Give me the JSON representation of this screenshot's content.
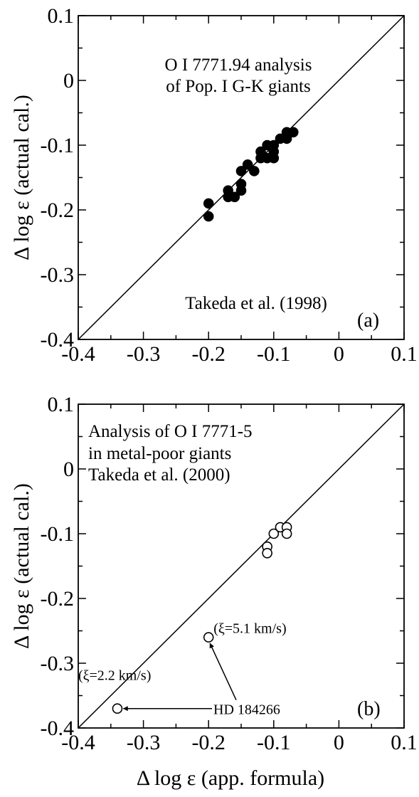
{
  "chart_data": [
    {
      "type": "scatter",
      "panel_label": "(a)",
      "annotations": [
        "O I 7771.94 analysis",
        "of Pop. I G-K giants",
        "Takeda et al. (1998)"
      ],
      "xlim": [
        -0.4,
        0.1
      ],
      "ylim": [
        -0.4,
        0.1
      ],
      "xticks": [
        "-0.4",
        "-0.3",
        "-0.2",
        "-0.1",
        "0",
        "0.1"
      ],
      "yticks": [
        "0.1",
        "0",
        "-0.1",
        "-0.2",
        "-0.3",
        "-0.4"
      ],
      "ylabel": "Δ log ε (actual cal.)",
      "marker": "filled",
      "reference_line": "y = x",
      "points": [
        {
          "x": -0.2,
          "y": -0.19
        },
        {
          "x": -0.2,
          "y": -0.21
        },
        {
          "x": -0.17,
          "y": -0.17
        },
        {
          "x": -0.17,
          "y": -0.18
        },
        {
          "x": -0.16,
          "y": -0.18
        },
        {
          "x": -0.15,
          "y": -0.16
        },
        {
          "x": -0.15,
          "y": -0.17
        },
        {
          "x": -0.15,
          "y": -0.14
        },
        {
          "x": -0.14,
          "y": -0.13
        },
        {
          "x": -0.13,
          "y": -0.14
        },
        {
          "x": -0.12,
          "y": -0.11
        },
        {
          "x": -0.12,
          "y": -0.12
        },
        {
          "x": -0.11,
          "y": -0.1
        },
        {
          "x": -0.11,
          "y": -0.12
        },
        {
          "x": -0.1,
          "y": -0.11
        },
        {
          "x": -0.1,
          "y": -0.12
        },
        {
          "x": -0.1,
          "y": -0.1
        },
        {
          "x": -0.09,
          "y": -0.09
        },
        {
          "x": -0.08,
          "y": -0.08
        },
        {
          "x": -0.08,
          "y": -0.09
        },
        {
          "x": -0.07,
          "y": -0.08
        }
      ]
    },
    {
      "type": "scatter",
      "panel_label": "(b)",
      "annotations": [
        "Analysis of O I 7771-5",
        "in metal-poor giants",
        "Takeda et al. (2000)"
      ],
      "xlim": [
        -0.4,
        0.1
      ],
      "ylim": [
        -0.4,
        0.1
      ],
      "xticks": [
        "-0.4",
        "-0.3",
        "-0.2",
        "-0.1",
        "0",
        "0.1"
      ],
      "yticks": [
        "0.1",
        "0",
        "-0.1",
        "-0.2",
        "-0.3",
        "-0.4"
      ],
      "xlabel": "Δ log ε (app. formula)",
      "ylabel": "Δ log ε (actual cal.)",
      "marker": "open",
      "reference_line": "y = x",
      "points": [
        {
          "x": -0.11,
          "y": -0.12
        },
        {
          "x": -0.11,
          "y": -0.13
        },
        {
          "x": -0.1,
          "y": -0.1
        },
        {
          "x": -0.09,
          "y": -0.09
        },
        {
          "x": -0.08,
          "y": -0.09
        },
        {
          "x": -0.08,
          "y": -0.1
        },
        {
          "x": -0.2,
          "y": -0.26
        },
        {
          "x": -0.34,
          "y": -0.37
        }
      ],
      "star_label": "HD 184266",
      "star_notes": [
        {
          "text": "(ξ=5.1 km/s)",
          "x": -0.2,
          "y": -0.26
        },
        {
          "text": "(ξ=2.2 km/s)",
          "x": -0.34,
          "y": -0.37
        }
      ]
    }
  ]
}
